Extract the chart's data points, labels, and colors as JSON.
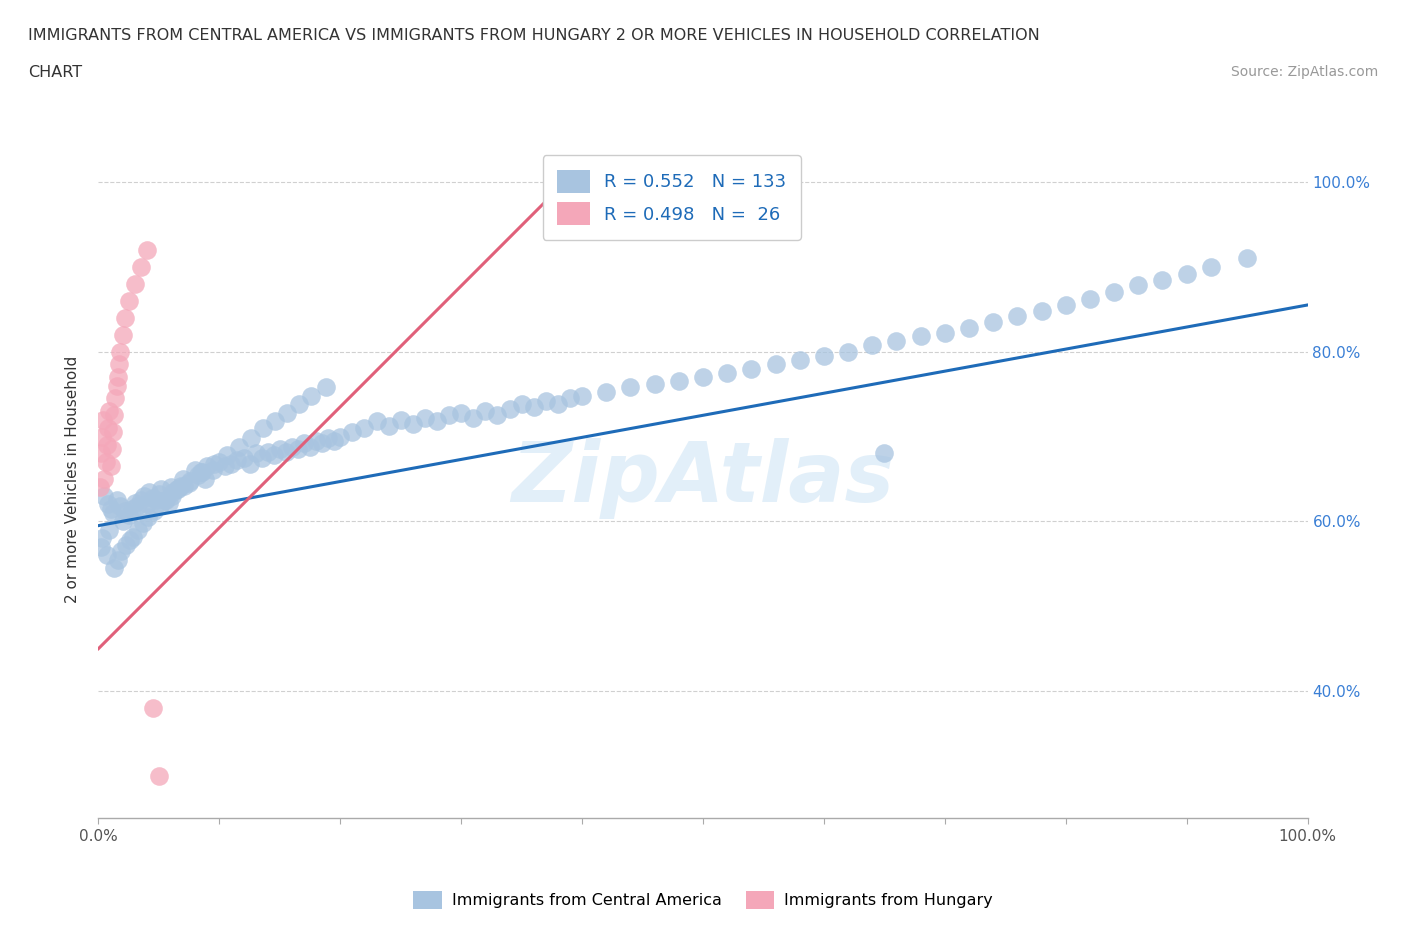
{
  "title_line1": "IMMIGRANTS FROM CENTRAL AMERICA VS IMMIGRANTS FROM HUNGARY 2 OR MORE VEHICLES IN HOUSEHOLD CORRELATION",
  "title_line2": "CHART",
  "source_text": "Source: ZipAtlas.com",
  "ylabel": "2 or more Vehicles in Household",
  "xmin": 0.0,
  "xmax": 1.0,
  "ymin": 0.25,
  "ymax": 1.05,
  "xtick_labels": [
    "0.0%",
    "",
    "",
    "",
    "",
    "",
    "",
    "",
    "",
    "",
    "100.0%"
  ],
  "xtick_vals": [
    0.0,
    0.1,
    0.2,
    0.3,
    0.4,
    0.5,
    0.6,
    0.7,
    0.8,
    0.9,
    1.0
  ],
  "ytick_labels_right": [
    "40.0%",
    "60.0%",
    "80.0%",
    "100.0%"
  ],
  "ytick_vals": [
    0.4,
    0.6,
    0.8,
    1.0
  ],
  "legend_labels": [
    "Immigrants from Central America",
    "Immigrants from Hungary"
  ],
  "blue_color": "#a8c4e0",
  "pink_color": "#f4a7b9",
  "line_blue": "#1e6bb8",
  "line_pink": "#e0607a",
  "R_blue": 0.552,
  "N_blue": 133,
  "R_pink": 0.498,
  "N_pink": 26,
  "watermark_text": "ZipAtlas",
  "grid_color": "#d0d0d0",
  "background_color": "#ffffff",
  "blue_x": [
    0.005,
    0.008,
    0.01,
    0.012,
    0.015,
    0.018,
    0.02,
    0.022,
    0.025,
    0.028,
    0.03,
    0.032,
    0.035,
    0.038,
    0.04,
    0.042,
    0.045,
    0.048,
    0.05,
    0.052,
    0.055,
    0.058,
    0.06,
    0.062,
    0.065,
    0.068,
    0.07,
    0.075,
    0.08,
    0.082,
    0.085,
    0.088,
    0.09,
    0.095,
    0.1,
    0.105,
    0.11,
    0.115,
    0.12,
    0.125,
    0.13,
    0.135,
    0.14,
    0.145,
    0.15,
    0.155,
    0.16,
    0.165,
    0.17,
    0.175,
    0.18,
    0.185,
    0.19,
    0.195,
    0.2,
    0.21,
    0.22,
    0.23,
    0.24,
    0.25,
    0.26,
    0.27,
    0.28,
    0.29,
    0.3,
    0.31,
    0.32,
    0.33,
    0.34,
    0.35,
    0.36,
    0.37,
    0.38,
    0.39,
    0.4,
    0.42,
    0.44,
    0.46,
    0.48,
    0.5,
    0.52,
    0.54,
    0.56,
    0.58,
    0.6,
    0.62,
    0.64,
    0.66,
    0.68,
    0.7,
    0.72,
    0.74,
    0.76,
    0.78,
    0.8,
    0.82,
    0.84,
    0.86,
    0.88,
    0.9,
    0.92,
    0.002,
    0.003,
    0.007,
    0.009,
    0.013,
    0.016,
    0.019,
    0.023,
    0.026,
    0.029,
    0.033,
    0.037,
    0.041,
    0.046,
    0.051,
    0.056,
    0.061,
    0.066,
    0.071,
    0.076,
    0.086,
    0.096,
    0.106,
    0.116,
    0.126,
    0.136,
    0.146,
    0.156,
    0.166,
    0.176,
    0.188,
    0.65,
    0.95
  ],
  "blue_y": [
    0.63,
    0.62,
    0.615,
    0.61,
    0.625,
    0.618,
    0.6,
    0.612,
    0.608,
    0.615,
    0.622,
    0.618,
    0.625,
    0.63,
    0.62,
    0.635,
    0.628,
    0.625,
    0.632,
    0.638,
    0.625,
    0.622,
    0.64,
    0.635,
    0.638,
    0.642,
    0.65,
    0.645,
    0.66,
    0.655,
    0.658,
    0.65,
    0.665,
    0.66,
    0.67,
    0.665,
    0.668,
    0.672,
    0.675,
    0.668,
    0.68,
    0.675,
    0.682,
    0.678,
    0.685,
    0.682,
    0.688,
    0.685,
    0.692,
    0.688,
    0.695,
    0.692,
    0.698,
    0.695,
    0.7,
    0.705,
    0.71,
    0.718,
    0.712,
    0.72,
    0.715,
    0.722,
    0.718,
    0.725,
    0.728,
    0.722,
    0.73,
    0.725,
    0.732,
    0.738,
    0.735,
    0.742,
    0.738,
    0.745,
    0.748,
    0.752,
    0.758,
    0.762,
    0.765,
    0.77,
    0.775,
    0.78,
    0.785,
    0.79,
    0.795,
    0.8,
    0.808,
    0.812,
    0.818,
    0.822,
    0.828,
    0.835,
    0.842,
    0.848,
    0.855,
    0.862,
    0.87,
    0.878,
    0.885,
    0.892,
    0.9,
    0.57,
    0.58,
    0.56,
    0.59,
    0.545,
    0.555,
    0.565,
    0.572,
    0.578,
    0.582,
    0.59,
    0.598,
    0.605,
    0.612,
    0.618,
    0.625,
    0.63,
    0.638,
    0.642,
    0.648,
    0.658,
    0.668,
    0.678,
    0.688,
    0.698,
    0.71,
    0.718,
    0.728,
    0.738,
    0.748,
    0.758,
    0.68,
    0.91
  ],
  "pink_x": [
    0.001,
    0.002,
    0.003,
    0.004,
    0.005,
    0.006,
    0.007,
    0.008,
    0.009,
    0.01,
    0.011,
    0.012,
    0.013,
    0.014,
    0.015,
    0.016,
    0.017,
    0.018,
    0.02,
    0.022,
    0.025,
    0.03,
    0.035,
    0.04,
    0.045,
    0.05
  ],
  "pink_y": [
    0.64,
    0.68,
    0.7,
    0.72,
    0.65,
    0.67,
    0.69,
    0.71,
    0.73,
    0.665,
    0.685,
    0.705,
    0.725,
    0.745,
    0.76,
    0.77,
    0.785,
    0.8,
    0.82,
    0.84,
    0.86,
    0.88,
    0.9,
    0.92,
    0.38,
    0.3
  ],
  "blue_line_x0": 0.0,
  "blue_line_x1": 1.0,
  "blue_line_y0": 0.595,
  "blue_line_y1": 0.855,
  "pink_line_x0": 0.0,
  "pink_line_x1": 0.4,
  "pink_line_y0": 0.45,
  "pink_line_y1": 1.02
}
